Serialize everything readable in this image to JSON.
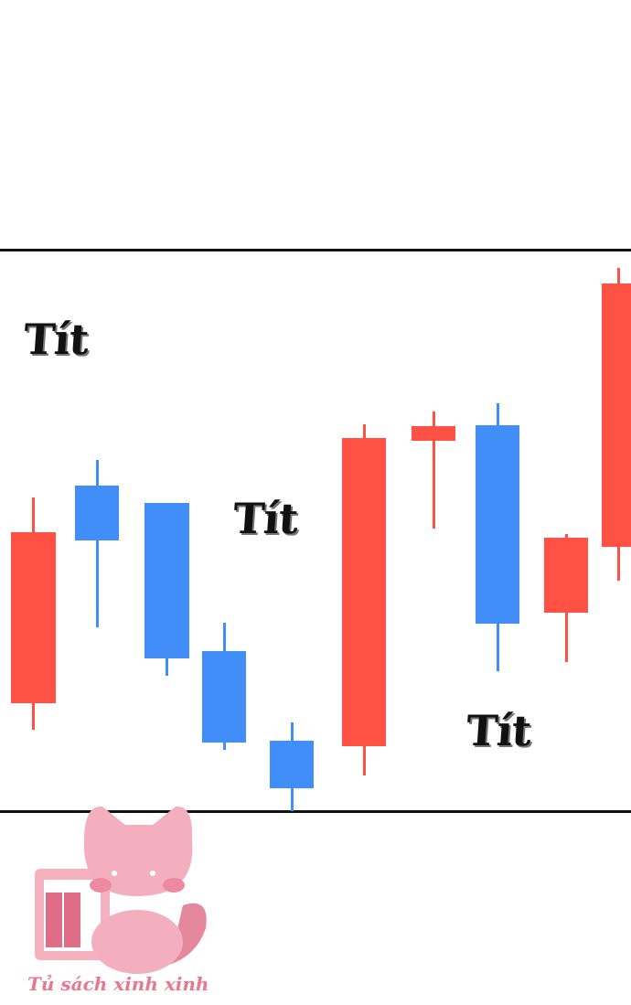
{
  "panel": {
    "sound_effects": [
      "Tít",
      "Tít",
      "Tít"
    ],
    "candle_colors": {
      "up": "#ff5144",
      "down": "#428ef9"
    },
    "candles": [
      {
        "color": "red"
      },
      {
        "color": "blue"
      },
      {
        "color": "blue"
      },
      {
        "color": "blue"
      },
      {
        "color": "blue"
      },
      {
        "color": "red"
      },
      {
        "color": "red"
      },
      {
        "color": "blue"
      },
      {
        "color": "red"
      },
      {
        "color": "red"
      }
    ]
  },
  "watermark": {
    "text": "Tủ sách xinh xinh",
    "icon": "pink-cat-bookshelf-logo"
  }
}
